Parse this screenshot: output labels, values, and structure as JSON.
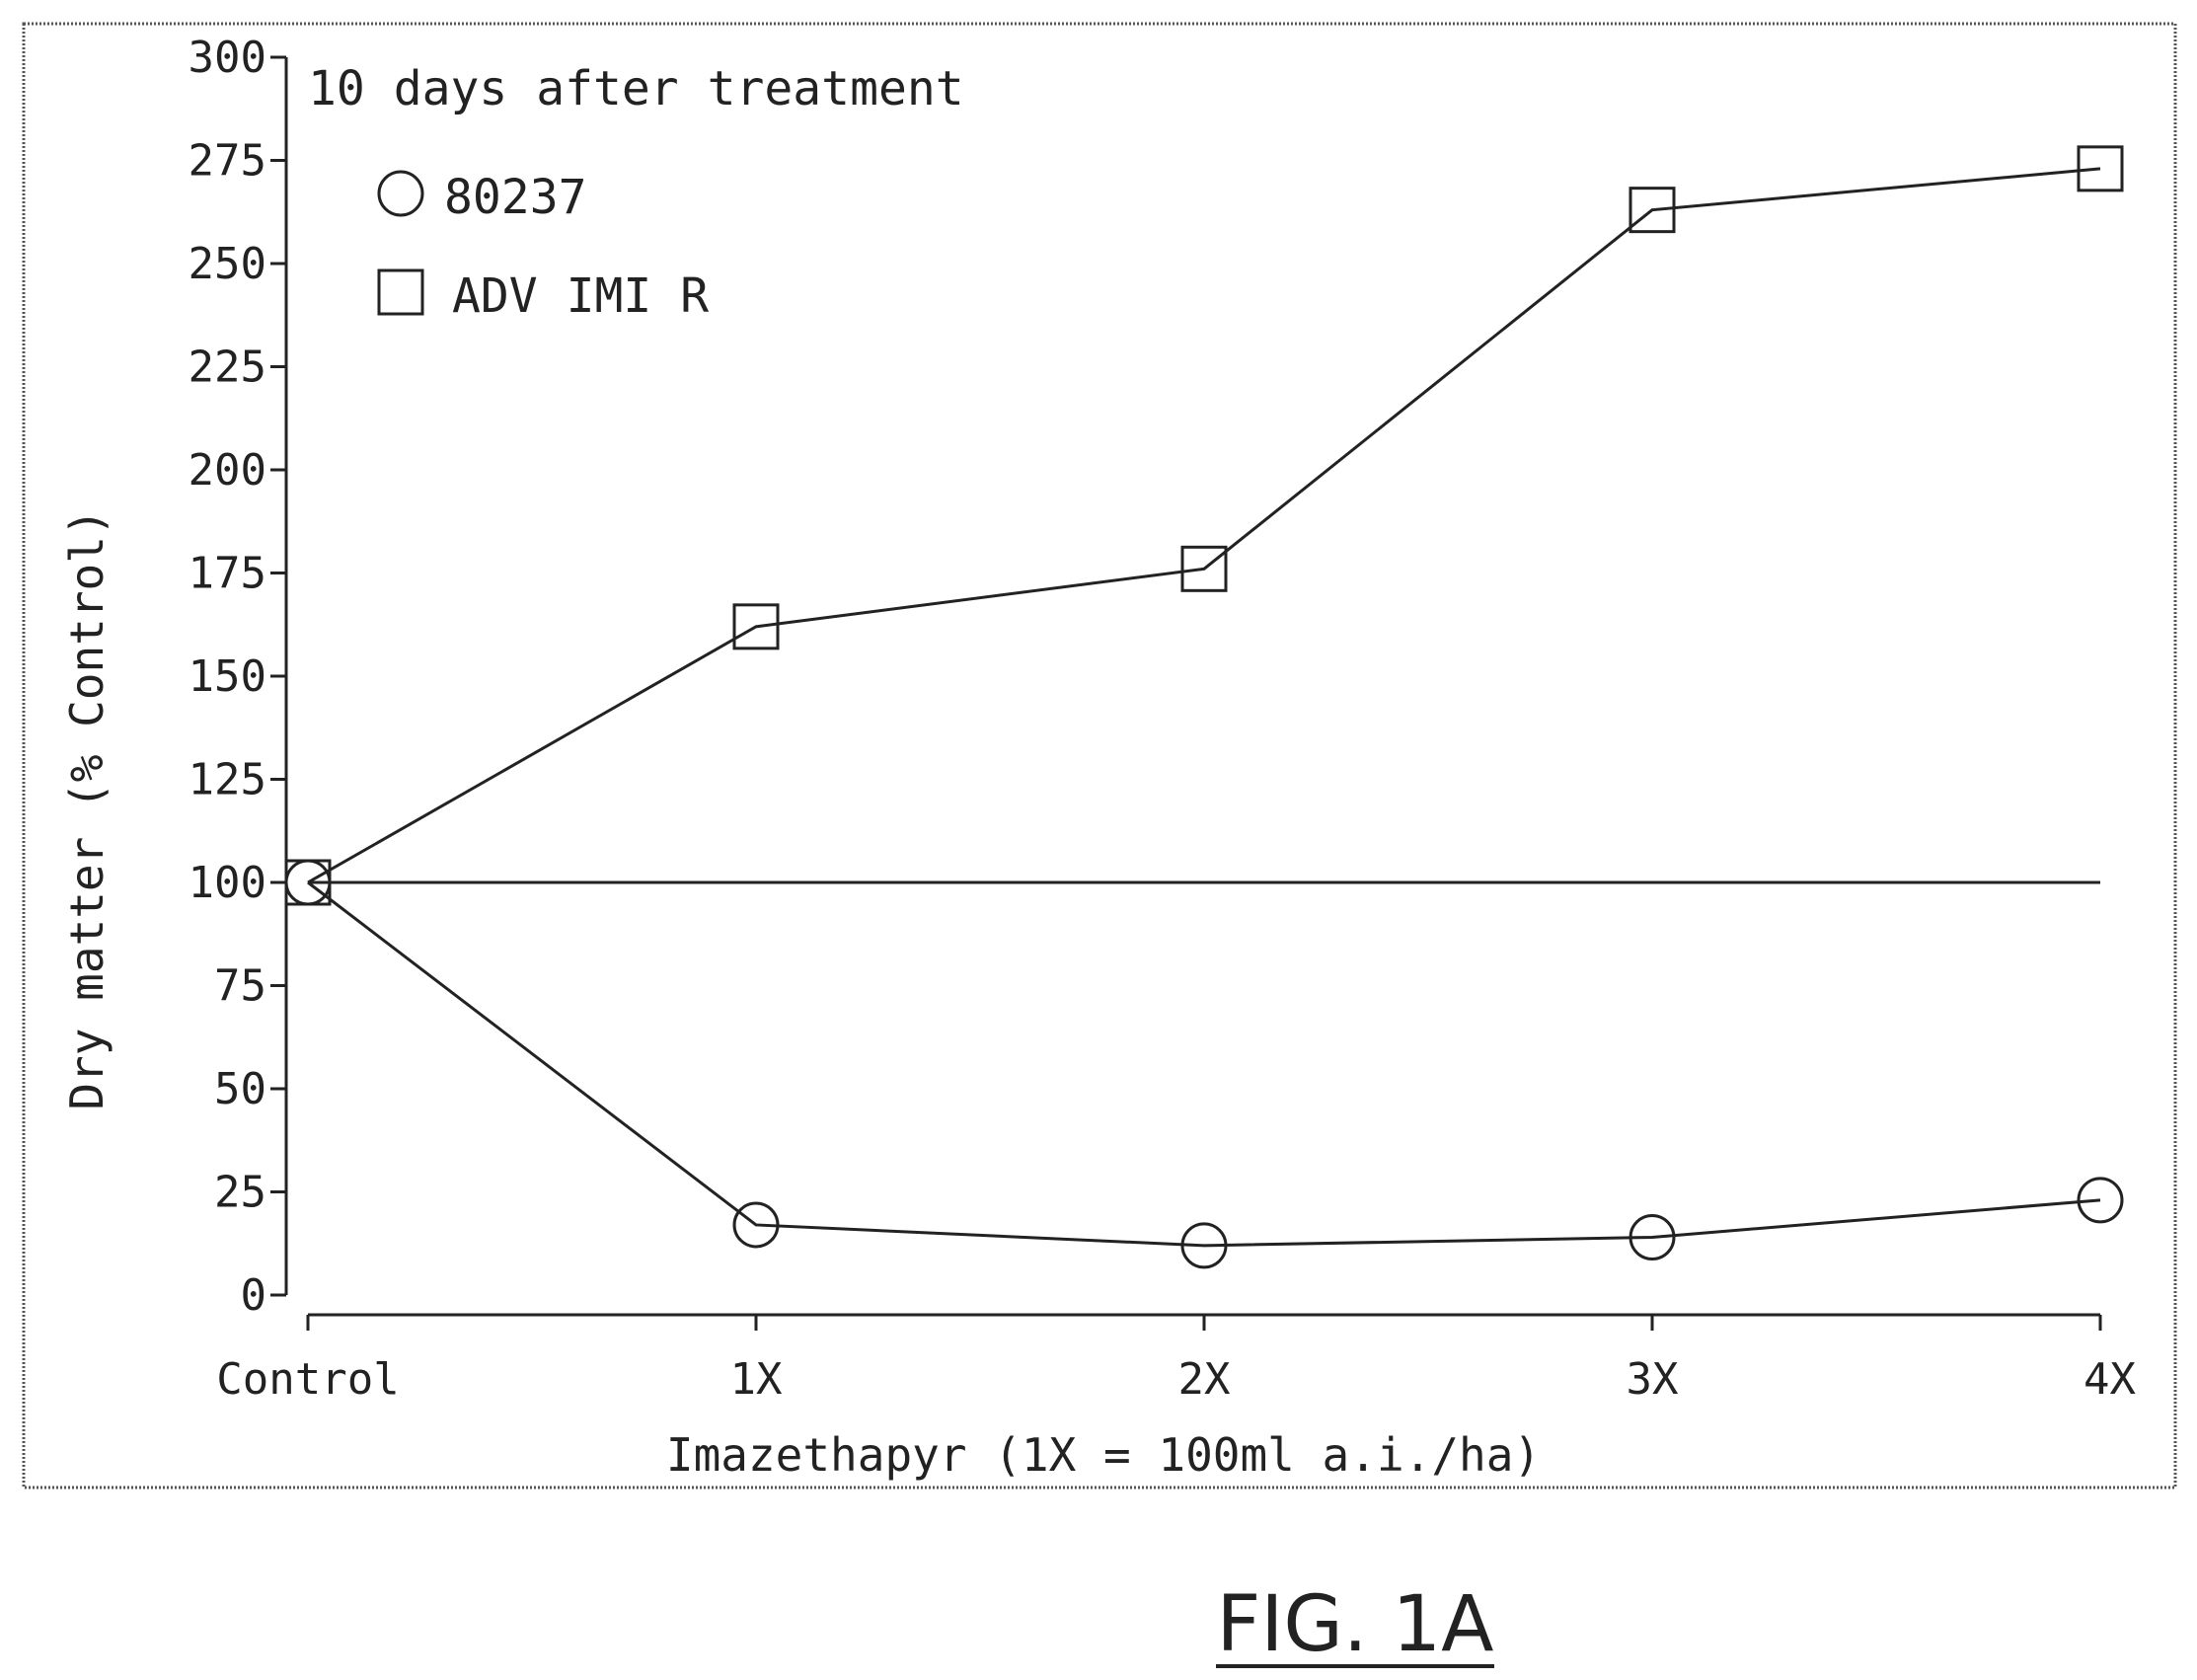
{
  "chart_data": {
    "type": "line",
    "annotation": "10 days after treatment",
    "xlabel": "Imazethapyr (1X = 100ml a.i./ha)",
    "ylabel": "Dry matter (% Control)",
    "categories": [
      "Control",
      "1X",
      "2X",
      "3X",
      "4X"
    ],
    "ylim": [
      0,
      300
    ],
    "yticks": [
      0,
      25,
      50,
      75,
      100,
      125,
      150,
      175,
      200,
      225,
      250,
      275,
      300
    ],
    "reference_line": 100,
    "grid": false,
    "legend_position": "top-left",
    "series": [
      {
        "name": "80237",
        "marker": "circle",
        "values": [
          100,
          17,
          12,
          14,
          23
        ]
      },
      {
        "name": "ADV IMI R",
        "marker": "square",
        "values": [
          100,
          162,
          176,
          263,
          273
        ]
      }
    ],
    "figure_label": "FIG. 1A",
    "colors": {
      "ink": "#222222",
      "frame": "#555555",
      "background": "#ffffff"
    }
  }
}
